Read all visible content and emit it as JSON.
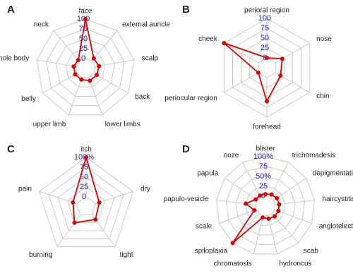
{
  "chart_data": [
    {
      "type": "radar",
      "panel": "A",
      "categories": [
        "face",
        "external auricle",
        "scalp",
        "back",
        "lower limbs",
        "upper limb",
        "belly",
        "the whole body",
        "neck"
      ],
      "values": [
        100,
        8,
        10,
        8,
        8,
        5,
        5,
        5,
        3
      ],
      "color": "#dd0000",
      "tick_color": "#1a1acc",
      "ylim": [
        0,
        100
      ],
      "yticks": [
        0,
        25,
        50,
        75,
        100
      ],
      "grid": true
    },
    {
      "type": "radar",
      "panel": "B",
      "categories": [
        "perioral region",
        "nose",
        "chin",
        "forehead",
        "periocular region",
        "cheek"
      ],
      "values": [
        0,
        20,
        15,
        60,
        0,
        100
      ],
      "color": "#dd0000",
      "tick_color": "#1a1acc",
      "ylim": [
        0,
        100
      ],
      "yticks": [
        0,
        25,
        50,
        75,
        100
      ],
      "grid": true
    },
    {
      "type": "radar",
      "panel": "C",
      "categories": [
        "itch",
        "dry",
        "tight",
        "burning",
        "pain"
      ],
      "values": [
        100,
        10,
        15,
        25,
        10
      ],
      "color": "#dd0000",
      "tick_color": "#1a1acc",
      "ylim": [
        0,
        100
      ],
      "yticks": [
        0,
        25,
        50,
        75,
        {
          "value": 100,
          "label": "100%"
        }
      ],
      "grid": true
    },
    {
      "type": "radar",
      "panel": "D",
      "categories": [
        "blister",
        "trichomadesis",
        "depigmentation",
        "haircystitis",
        "angiotelectasis",
        "scab",
        "hydroncus",
        "chromatosis",
        "spiloplaxia",
        "scale",
        "papulo-vesicle",
        "papula",
        "ooze"
      ],
      "values": [
        5,
        8,
        10,
        10,
        10,
        10,
        8,
        5,
        100,
        5,
        25,
        5,
        5
      ],
      "color": "#dd0000",
      "tick_color": "#1a1acc",
      "ylim": [
        0,
        100
      ],
      "yticks": [
        0,
        25,
        {
          "value": 50,
          "label": "50%"
        },
        75,
        {
          "value": 100,
          "label": "100%"
        }
      ],
      "grid": true
    }
  ]
}
